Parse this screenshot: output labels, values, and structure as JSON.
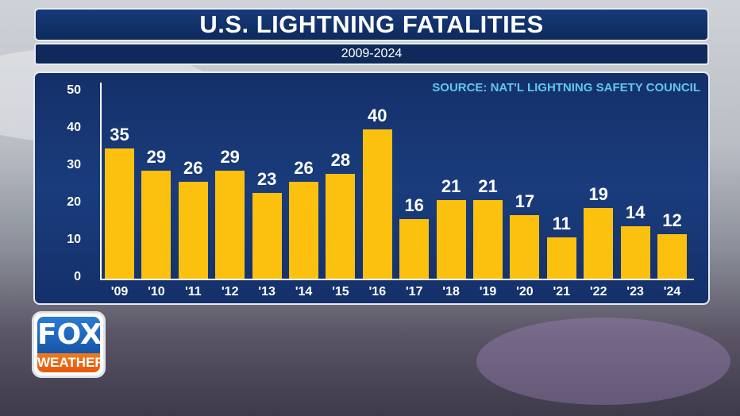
{
  "header": {
    "title": "U.S. LIGHTNING FATALITIES",
    "subtitle": "2009-2024"
  },
  "source": "SOURCE: NAT'L LIGHTNING SAFETY COUNCIL",
  "logo": {
    "top": "FOX",
    "bottom": "WEATHER"
  },
  "colors": {
    "bar": "#fcc10f",
    "panel": "#14306a",
    "source_text": "#5fc8f0"
  },
  "chart_data": {
    "type": "bar",
    "title": "U.S. LIGHTNING FATALITIES",
    "subtitle": "2009-2024",
    "categories": [
      "'09",
      "'10",
      "'11",
      "'12",
      "'13",
      "'14",
      "'15",
      "'16",
      "'17",
      "'18",
      "'19",
      "'20",
      "'21",
      "'22",
      "'23",
      "'24"
    ],
    "values": [
      35,
      29,
      26,
      29,
      23,
      26,
      28,
      40,
      16,
      21,
      21,
      17,
      11,
      19,
      14,
      12
    ],
    "yticks": [
      0,
      10,
      20,
      30,
      40,
      50
    ],
    "ylim": [
      0,
      50
    ],
    "xlabel": "",
    "ylabel": "",
    "grid": false,
    "data_labels": true
  }
}
